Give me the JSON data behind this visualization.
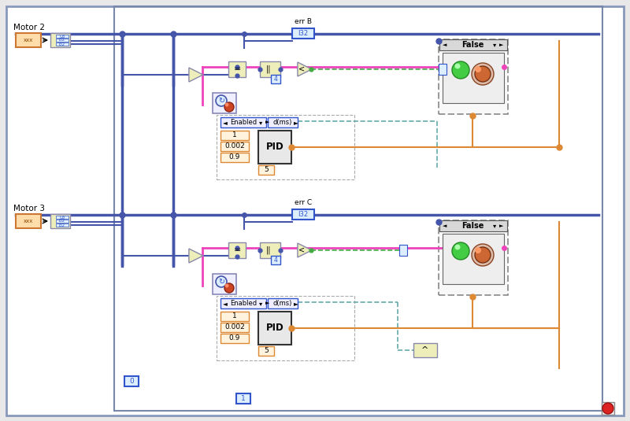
{
  "bg_outer": "#e8e8e8",
  "bg_inner": "#ffffff",
  "border_color": "#8899bb",
  "border2_color": "#7788aa",
  "motor2_label": "Motor 2",
  "motor3_label": "Motor 3",
  "errB_label": "err B",
  "errC_label": "err C",
  "i32_color": "#3355cc",
  "i32_bg": "#ddeeff",
  "wire_blue": "#4455aa",
  "wire_pink": "#ee44bb",
  "wire_orange": "#dd8833",
  "wire_green": "#44aa44",
  "wire_teal": "#66aaaa",
  "motor_border": "#cc7733",
  "motor_bg": "#ffddaa",
  "cluster_bg": "#eeeebb",
  "cluster_border": "#8888aa",
  "func_bg": "#eeeebb",
  "func_border": "#8888aa",
  "pid_bg": "#e8e8e8",
  "pid_border": "#333333",
  "false_border": "#555555",
  "false_bg": "#f0f0f0",
  "false_bar_bg": "#d8d8d8",
  "led_green": "#44cc44",
  "icon_brown": "#cc6633",
  "orange_vals": [
    "1",
    "0.002",
    "0.9",
    "5"
  ],
  "enabled_label": "Enabled",
  "dms_label": "d(ms)",
  "pid_label": "PID",
  "false_label": "False",
  "val0_label": "0",
  "val1_label": "1"
}
